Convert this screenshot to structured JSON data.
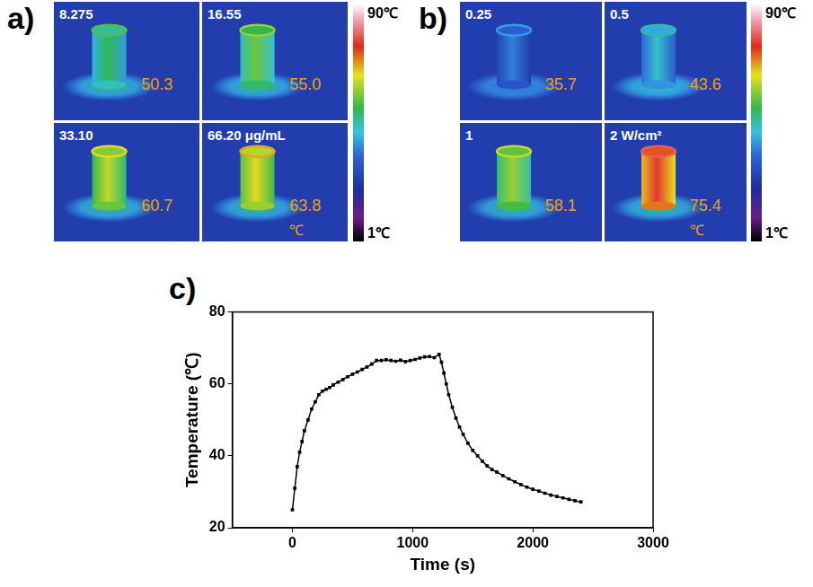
{
  "panel_a": {
    "letter": "a)",
    "images": [
      {
        "label": "8.275",
        "temperature": "50.3"
      },
      {
        "label": "16.55",
        "temperature": "55.0"
      },
      {
        "label": "33.10",
        "temperature": "60.7"
      },
      {
        "label": "66.20 μg/mL",
        "temperature": "63.8",
        "unit": "℃"
      }
    ],
    "colorbar": {
      "max": "90℃",
      "min": "1℃"
    }
  },
  "panel_b": {
    "letter": "b)",
    "images": [
      {
        "label": "0.25",
        "temperature": "35.7"
      },
      {
        "label": "0.5",
        "temperature": "43.6"
      },
      {
        "label": "1",
        "temperature": "58.1"
      },
      {
        "label": "2 W/cm²",
        "temperature": "75.4",
        "unit": "℃"
      }
    ],
    "colorbar": {
      "max": "90℃",
      "min": "1℃"
    }
  },
  "chart_data": {
    "panel_label": "c)",
    "type": "line",
    "x_label": "Time (s)",
    "y_label": "Temperature (℃)",
    "x": [
      0,
      20,
      40,
      60,
      80,
      100,
      130,
      160,
      190,
      220,
      250,
      280,
      310,
      340,
      380,
      420,
      460,
      500,
      540,
      580,
      620,
      660,
      700,
      740,
      780,
      820,
      860,
      900,
      940,
      980,
      1020,
      1060,
      1100,
      1140,
      1180,
      1220,
      1240,
      1260,
      1280,
      1300,
      1330,
      1360,
      1390,
      1420,
      1460,
      1500,
      1540,
      1580,
      1620,
      1660,
      1700,
      1750,
      1800,
      1850,
      1900,
      1950,
      2000,
      2050,
      2100,
      2150,
      2200,
      2250,
      2300,
      2350,
      2400
    ],
    "values": [
      25,
      31,
      37,
      41,
      44,
      47,
      50,
      53,
      55,
      57,
      58,
      58.5,
      59,
      59.7,
      60.5,
      61.2,
      62,
      62.7,
      63.3,
      64,
      64.7,
      65.5,
      66.5,
      66.5,
      66.7,
      66.5,
      66.3,
      66.6,
      66.2,
      66.5,
      66.8,
      67.2,
      67.5,
      67.6,
      67.3,
      68.2,
      66,
      63,
      60,
      57,
      53.5,
      50.5,
      48,
      46,
      43.5,
      41.5,
      40,
      38.5,
      37.2,
      36.2,
      35.5,
      34.5,
      33.6,
      32.8,
      32,
      31.3,
      30.7,
      30.2,
      29.6,
      29.1,
      28.7,
      28.3,
      27.9,
      27.5,
      27.2
    ],
    "color": "#000000",
    "marker": "square",
    "line_style": "solid",
    "xlim": [
      -500,
      3000
    ],
    "xticks": [
      0,
      1000,
      2000,
      3000
    ],
    "ylim": [
      20,
      80
    ],
    "yticks": [
      20,
      40,
      60,
      80
    ],
    "grid": false
  }
}
